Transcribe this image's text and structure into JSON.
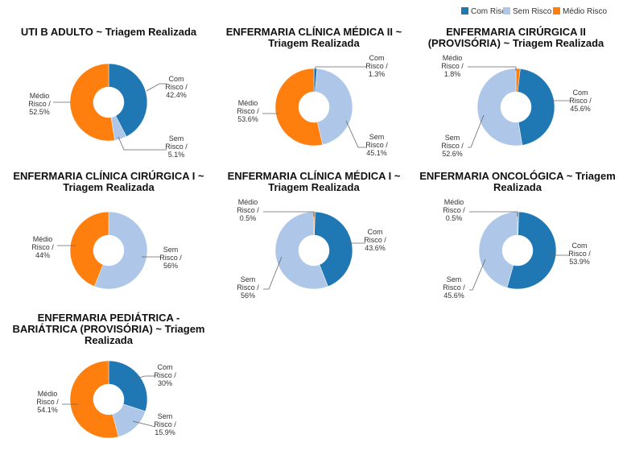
{
  "legend": {
    "items": [
      {
        "name": "Com Risco",
        "color": "#1f77b4"
      },
      {
        "name": "Sem Risco",
        "color": "#aec7e8"
      },
      {
        "name": "Médio Risco",
        "color": "#ff7f0e"
      }
    ]
  },
  "chart_data": [
    {
      "type": "pie",
      "title": [
        "UTI B ADULTO ~ Triagem Realizada"
      ],
      "slices": [
        {
          "label": [
            "Com",
            "Risco /",
            "42.4%"
          ],
          "value": 42.4,
          "color": "#1f77b4"
        },
        {
          "label": [
            "Sem",
            "Risco /",
            "5.1%"
          ],
          "value": 5.1,
          "color": "#aec7e8"
        },
        {
          "label": [
            "Médio",
            "Risco /",
            "52.5%"
          ],
          "value": 52.5,
          "color": "#ff7f0e"
        }
      ]
    },
    {
      "type": "pie",
      "title": [
        "ENFERMARIA CLÍNICA MÉDICA II ~",
        "Triagem Realizada"
      ],
      "slices": [
        {
          "label": [
            "Com",
            "Risco /",
            "1.3%"
          ],
          "value": 1.3,
          "color": "#1f77b4"
        },
        {
          "label": [
            "Sem",
            "Risco /",
            "45.1%"
          ],
          "value": 45.1,
          "color": "#aec7e8"
        },
        {
          "label": [
            "Médio",
            "Risco /",
            "53.6%"
          ],
          "value": 53.6,
          "color": "#ff7f0e"
        }
      ]
    },
    {
      "type": "pie",
      "title": [
        "ENFERMARIA CIRÚRGICA II",
        "(PROVISÓRIA) ~ Triagem Realizada"
      ],
      "slices": [
        {
          "label": [
            "Médio",
            "Risco /",
            "1.8%"
          ],
          "value": 1.8,
          "color": "#ff7f0e"
        },
        {
          "label": [
            "Com",
            "Risco /",
            "45.6%"
          ],
          "value": 45.6,
          "color": "#1f77b4"
        },
        {
          "label": [
            "Sem",
            "Risco /",
            "52.6%"
          ],
          "value": 52.6,
          "color": "#aec7e8"
        }
      ]
    },
    {
      "type": "pie",
      "title": [
        "ENFERMARIA CLÍNICA CIRÚRGICA I ~",
        "Triagem Realizada"
      ],
      "slices": [
        {
          "label": [
            "Sem",
            "Risco /",
            "56%"
          ],
          "value": 56,
          "color": "#aec7e8"
        },
        {
          "label": [
            "Médio",
            "Risco /",
            "44%"
          ],
          "value": 44,
          "color": "#ff7f0e"
        }
      ]
    },
    {
      "type": "pie",
      "title": [
        "ENFERMARIA CLÍNICA MÉDICA I ~",
        "Triagem Realizada"
      ],
      "slices": [
        {
          "label": [
            "Médio",
            "Risco /",
            "0.5%"
          ],
          "value": 0.5,
          "color": "#ff7f0e"
        },
        {
          "label": [
            "Com",
            "Risco /",
            "43.6%"
          ],
          "value": 43.6,
          "color": "#1f77b4"
        },
        {
          "label": [
            "Sem",
            "Risco /",
            "56%"
          ],
          "value": 56,
          "color": "#aec7e8"
        }
      ]
    },
    {
      "type": "pie",
      "title": [
        "ENFERMARIA ONCOLÓGICA ~ Triagem",
        "Realizada"
      ],
      "slices": [
        {
          "label": [
            "Médio",
            "Risco /",
            "0.5%"
          ],
          "value": 0.5,
          "color": "#ff7f0e"
        },
        {
          "label": [
            "Com",
            "Risco /",
            "53.9%"
          ],
          "value": 53.9,
          "color": "#1f77b4"
        },
        {
          "label": [
            "Sem",
            "Risco /",
            "45.6%"
          ],
          "value": 45.6,
          "color": "#aec7e8"
        }
      ]
    },
    {
      "type": "pie",
      "title": [
        "ENFERMARIA PEDIÁTRICA -",
        "BARIÁTRICA (PROVISÓRIA) ~ Triagem",
        "Realizada"
      ],
      "slices": [
        {
          "label": [
            "Com",
            "Risco /",
            "30%"
          ],
          "value": 30,
          "color": "#1f77b4"
        },
        {
          "label": [
            "Sem",
            "Risco /",
            "15.9%"
          ],
          "value": 15.9,
          "color": "#aec7e8"
        },
        {
          "label": [
            "Médio",
            "Risco /",
            "54.1%"
          ],
          "value": 54.1,
          "color": "#ff7f0e"
        }
      ]
    }
  ]
}
